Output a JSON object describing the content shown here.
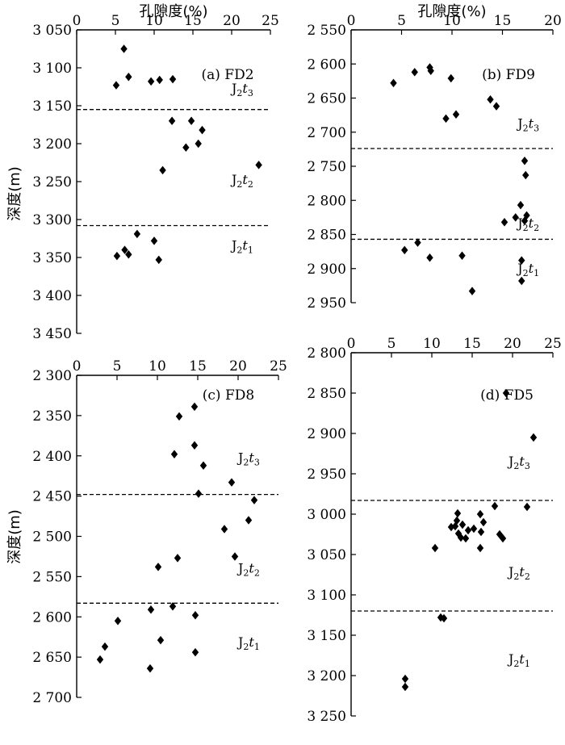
{
  "x_axis_title": "孔隙度(%)",
  "y_axis_title": "深度(m)",
  "chart_data": [
    {
      "id": "a",
      "type": "scatter",
      "title": "(a) FD2",
      "xlim": [
        0,
        25
      ],
      "ylim": [
        3050,
        3450
      ],
      "xticks": [
        "0",
        "5",
        "10",
        "15",
        "20",
        "25"
      ],
      "yticks": [
        "3 050",
        "3 100",
        "3 150",
        "3 200",
        "3 250",
        "3 300",
        "3 350",
        "3 400",
        "3 450"
      ],
      "points": [
        [
          6.1,
          3075
        ],
        [
          6.7,
          3112
        ],
        [
          5.1,
          3123
        ],
        [
          9.6,
          3118
        ],
        [
          10.7,
          3116
        ],
        [
          12.4,
          3115
        ],
        [
          12.3,
          3170
        ],
        [
          14.8,
          3170
        ],
        [
          16.2,
          3182
        ],
        [
          15.7,
          3200
        ],
        [
          14.1,
          3205
        ],
        [
          11.1,
          3235
        ],
        [
          23.5,
          3228
        ],
        [
          7.8,
          3319
        ],
        [
          10.0,
          3328
        ],
        [
          6.2,
          3340
        ],
        [
          6.7,
          3346
        ],
        [
          5.2,
          3348
        ],
        [
          10.6,
          3353
        ]
      ],
      "boundaries": [
        3155,
        3308
      ],
      "units": [
        {
          "label": "J2t3",
          "depth": 3133,
          "x": 20
        },
        {
          "label": "J2t2",
          "depth": 3253,
          "x": 20
        },
        {
          "label": "J2t1",
          "depth": 3340,
          "x": 20
        }
      ]
    },
    {
      "id": "b",
      "type": "scatter",
      "title": "(b) FD9",
      "xlim": [
        0,
        20
      ],
      "ylim": [
        2550,
        2950
      ],
      "xticks": [
        "0",
        "5",
        "10",
        "15",
        "20"
      ],
      "yticks": [
        "2 550",
        "2 600",
        "2 650",
        "2 700",
        "2 750",
        "2 800",
        "2 850",
        "2 900",
        "2 950"
      ],
      "points": [
        [
          4.2,
          2628
        ],
        [
          6.3,
          2612
        ],
        [
          7.8,
          2605
        ],
        [
          7.9,
          2610
        ],
        [
          9.9,
          2621
        ],
        [
          13.8,
          2652
        ],
        [
          14.4,
          2662
        ],
        [
          10.4,
          2674
        ],
        [
          9.4,
          2680
        ],
        [
          17.2,
          2742
        ],
        [
          17.3,
          2763
        ],
        [
          16.8,
          2807
        ],
        [
          17.4,
          2822
        ],
        [
          16.3,
          2825
        ],
        [
          17.2,
          2830
        ],
        [
          15.2,
          2832
        ],
        [
          6.6,
          2862
        ],
        [
          5.3,
          2873
        ],
        [
          7.8,
          2884
        ],
        [
          11.0,
          2881
        ],
        [
          16.9,
          2888
        ],
        [
          16.9,
          2918
        ],
        [
          12.0,
          2933
        ]
      ],
      "boundaries": [
        2724,
        2857
      ],
      "units": [
        {
          "label": "J2t3",
          "depth": 2694,
          "x": 16.5
        },
        {
          "label": "J2t2",
          "depth": 2840,
          "x": 16.5
        },
        {
          "label": "J2t1",
          "depth": 2906,
          "x": 16.5
        }
      ]
    },
    {
      "id": "c",
      "type": "scatter",
      "title": "(c) FD8",
      "xlim": [
        0,
        25
      ],
      "ylim": [
        2300,
        2700
      ],
      "xticks": [
        "0",
        "5",
        "10",
        "15",
        "20",
        "25"
      ],
      "yticks": [
        "2 300",
        "2 350",
        "2 400",
        "2 450",
        "2 500",
        "2 550",
        "2 600",
        "2 650",
        "2 700"
      ],
      "points": [
        [
          14.6,
          2339
        ],
        [
          12.7,
          2351
        ],
        [
          14.6,
          2387
        ],
        [
          12.1,
          2398
        ],
        [
          15.7,
          2412
        ],
        [
          19.2,
          2433
        ],
        [
          15.1,
          2447
        ],
        [
          22.0,
          2455
        ],
        [
          21.3,
          2480
        ],
        [
          18.3,
          2491
        ],
        [
          19.6,
          2525
        ],
        [
          12.5,
          2527
        ],
        [
          10.1,
          2538
        ],
        [
          14.7,
          2598
        ],
        [
          11.9,
          2587
        ],
        [
          9.2,
          2591
        ],
        [
          5.1,
          2605
        ],
        [
          10.4,
          2629
        ],
        [
          3.5,
          2637
        ],
        [
          14.7,
          2644
        ],
        [
          2.9,
          2653
        ],
        [
          9.1,
          2664
        ]
      ],
      "boundaries": [
        2448,
        2583
      ],
      "units": [
        {
          "label": "J2t3",
          "depth": 2408,
          "x": 20
        },
        {
          "label": "J2t2",
          "depth": 2545,
          "x": 20
        },
        {
          "label": "J2t1",
          "depth": 2637,
          "x": 20
        }
      ]
    },
    {
      "id": "d",
      "type": "scatter",
      "title": "(d) FD5",
      "xlim": [
        0,
        25
      ],
      "ylim": [
        2800,
        3250
      ],
      "xticks": [
        "0",
        "5",
        "10",
        "15",
        "20",
        "25"
      ],
      "yticks": [
        "2 800",
        "2 850",
        "2 900",
        "2 950",
        "3 000",
        "3 050",
        "3 100",
        "3 150",
        "3 200",
        "3 250"
      ],
      "points": [
        [
          19.2,
          2850
        ],
        [
          22.6,
          2905
        ],
        [
          13.2,
          2999
        ],
        [
          13.1,
          3008
        ],
        [
          12.9,
          3015
        ],
        [
          13.3,
          3024
        ],
        [
          13.8,
          3013
        ],
        [
          14.5,
          3020
        ],
        [
          13.6,
          3029
        ],
        [
          14.2,
          3030
        ],
        [
          16.0,
          3000
        ],
        [
          16.4,
          3010
        ],
        [
          16.1,
          3022
        ],
        [
          17.8,
          2990
        ],
        [
          18.4,
          3025
        ],
        [
          18.8,
          3030
        ],
        [
          21.8,
          2991
        ],
        [
          16.0,
          3042
        ],
        [
          10.4,
          3042
        ],
        [
          11.1,
          3128
        ],
        [
          11.5,
          3129
        ],
        [
          6.7,
          3204
        ],
        [
          6.7,
          3214
        ],
        [
          12.4,
          3016
        ],
        [
          15.2,
          3018
        ]
      ],
      "boundaries": [
        2983,
        3120
      ],
      "units": [
        {
          "label": "J2t3",
          "depth": 2940,
          "x": 19.5
        },
        {
          "label": "J2t2",
          "depth": 3077,
          "x": 19.5
        },
        {
          "label": "J2t1",
          "depth": 3185,
          "x": 19.5
        }
      ]
    }
  ]
}
